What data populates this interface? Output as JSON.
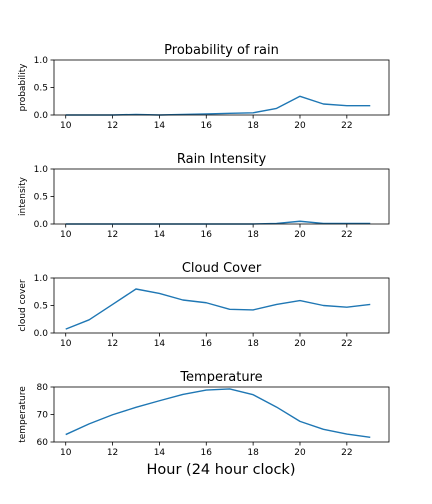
{
  "chart_data": [
    {
      "type": "line",
      "title": "Probability of rain",
      "ylabel": "probability",
      "xlabel": "",
      "xlim": [
        9.5,
        23.8
      ],
      "ylim": [
        0,
        1.0
      ],
      "xticks": [
        10,
        12,
        14,
        16,
        18,
        20,
        22
      ],
      "yticks": [
        0.0,
        0.5,
        1.0
      ],
      "ytick_labels": [
        "0.0",
        "0.5",
        "1.0"
      ],
      "color": "#1f77b4",
      "x": [
        10,
        11,
        12,
        13,
        14,
        15,
        16,
        17,
        18,
        19,
        20,
        21,
        22,
        23
      ],
      "values": [
        0.0,
        0.0,
        0.0,
        0.01,
        0.0,
        0.01,
        0.02,
        0.03,
        0.04,
        0.12,
        0.34,
        0.2,
        0.17,
        0.17
      ]
    },
    {
      "type": "line",
      "title": "Rain Intensity",
      "ylabel": "intensity",
      "xlabel": "",
      "xlim": [
        9.5,
        23.8
      ],
      "ylim": [
        0,
        1.0
      ],
      "xticks": [
        10,
        12,
        14,
        16,
        18,
        20,
        22
      ],
      "yticks": [
        0.0,
        0.5,
        1.0
      ],
      "ytick_labels": [
        "0.0",
        "0.5",
        "1.0"
      ],
      "color": "#1f77b4",
      "x": [
        10,
        11,
        12,
        13,
        14,
        15,
        16,
        17,
        18,
        19,
        20,
        21,
        22,
        23
      ],
      "values": [
        0.0,
        0.0,
        0.0,
        0.0,
        0.0,
        0.0,
        0.0,
        0.0,
        0.0,
        0.01,
        0.05,
        0.01,
        0.01,
        0.01
      ]
    },
    {
      "type": "line",
      "title": "Cloud Cover",
      "ylabel": "cloud cover",
      "xlabel": "",
      "xlim": [
        9.5,
        23.8
      ],
      "ylim": [
        0,
        1.0
      ],
      "xticks": [
        10,
        12,
        14,
        16,
        18,
        20,
        22
      ],
      "yticks": [
        0.0,
        0.5,
        1.0
      ],
      "ytick_labels": [
        "0.0",
        "0.5",
        "1.0"
      ],
      "color": "#1f77b4",
      "x": [
        10,
        11,
        12,
        13,
        14,
        15,
        16,
        17,
        18,
        19,
        20,
        21,
        22,
        23
      ],
      "values": [
        0.07,
        0.24,
        0.52,
        0.8,
        0.72,
        0.6,
        0.55,
        0.43,
        0.42,
        0.52,
        0.59,
        0.5,
        0.47,
        0.52
      ]
    },
    {
      "type": "line",
      "title": "Temperature",
      "ylabel": "temperature",
      "xlabel": "Hour (24 hour clock)",
      "xlim": [
        9.5,
        23.8
      ],
      "ylim": [
        60,
        80
      ],
      "xticks": [
        10,
        12,
        14,
        16,
        18,
        20,
        22
      ],
      "yticks": [
        60,
        70,
        80
      ],
      "ytick_labels": [
        "60",
        "70",
        "80"
      ],
      "color": "#1f77b4",
      "x": [
        10,
        11,
        12,
        13,
        14,
        15,
        16,
        17,
        18,
        19,
        20,
        21,
        22,
        23
      ],
      "values": [
        62.7,
        66.6,
        69.9,
        72.6,
        75.0,
        77.3,
        78.9,
        79.3,
        77.2,
        72.7,
        67.5,
        64.6,
        62.9,
        61.7
      ]
    }
  ]
}
